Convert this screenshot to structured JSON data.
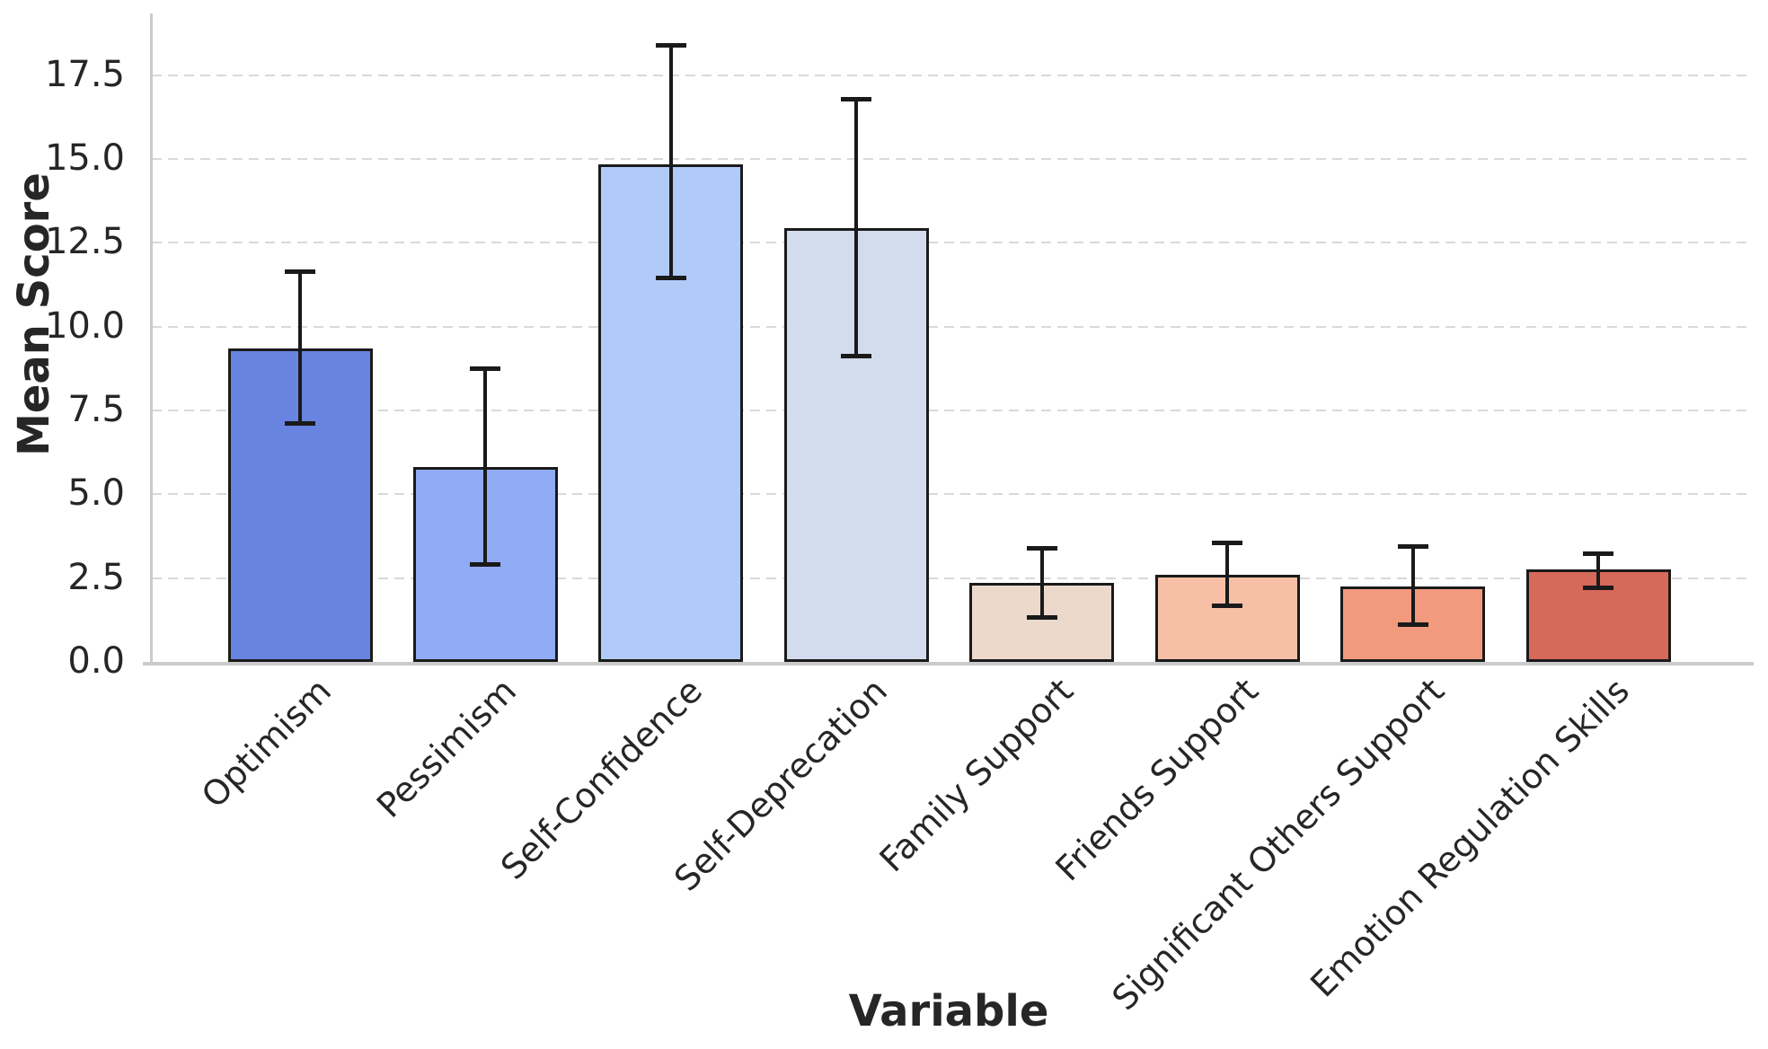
{
  "chart_data": {
    "type": "bar",
    "title": "",
    "xlabel": "Variable",
    "ylabel": "Mean Score",
    "categories": [
      "Optimism",
      "Pessimism",
      "Self-Confidence",
      "Self-Deprecation",
      "Family Support",
      "Friends Support",
      "Significant Others Support",
      "Emotion Regulation Skills"
    ],
    "values": [
      9.35,
      5.8,
      14.85,
      12.95,
      2.35,
      2.6,
      2.25,
      2.75
    ],
    "error_low": [
      7.1,
      2.9,
      11.45,
      9.1,
      1.3,
      1.65,
      1.1,
      2.2
    ],
    "error_high": [
      11.65,
      8.75,
      18.4,
      16.8,
      3.4,
      3.55,
      3.45,
      3.25
    ],
    "bar_colors": [
      "#6884E0",
      "#90ABF5",
      "#B1CBF9",
      "#D3DCED",
      "#ECD9CC",
      "#F7BFA5",
      "#F19A7E",
      "#D7695B"
    ],
    "bar_edge_color": "#1a1a1a",
    "error_bar_color": "#1a1a1a",
    "ylim": [
      0,
      19.34
    ],
    "yticks": [
      0,
      2.5,
      5,
      7.5,
      10,
      12.5,
      15,
      17.5
    ],
    "ytick_labels": [
      "0.0",
      "2.5",
      "5.0",
      "7.5",
      "10.0",
      "12.5",
      "15.0",
      "17.5"
    ],
    "grid": "horizontal dashed",
    "grid_color": "#d9d9d9",
    "legend": "none"
  }
}
